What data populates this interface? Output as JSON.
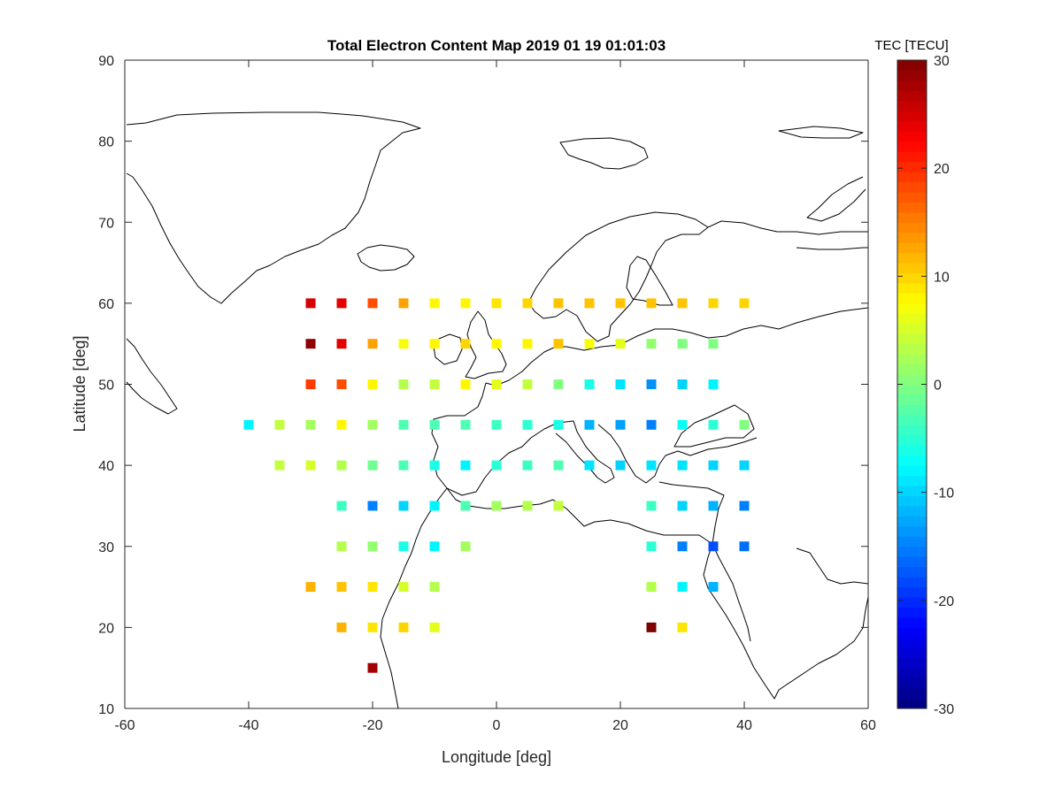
{
  "chart_data": {
    "type": "heatmap",
    "title": "Total Electron Content Map 2019 01 19 01:01:03",
    "xlabel": "Longitude [deg]",
    "ylabel": "Latitude [deg]",
    "xlim": [
      -60,
      60
    ],
    "ylim": [
      10,
      90
    ],
    "xticks": [
      -60,
      -40,
      -20,
      0,
      20,
      40,
      60
    ],
    "yticks": [
      10,
      20,
      30,
      40,
      50,
      60,
      70,
      80,
      90
    ],
    "colorbar": {
      "label": "TEC [TECU]",
      "range": [
        -30,
        30
      ],
      "ticks": [
        -30,
        -20,
        -10,
        0,
        10,
        20,
        30
      ],
      "colormap": "jet"
    },
    "points": [
      {
        "lon": -30,
        "lat": 60,
        "tec": 25
      },
      {
        "lon": -25,
        "lat": 60,
        "tec": 24
      },
      {
        "lon": -20,
        "lat": 60,
        "tec": 18
      },
      {
        "lon": -15,
        "lat": 60,
        "tec": 13
      },
      {
        "lon": -10,
        "lat": 60,
        "tec": 8
      },
      {
        "lon": -5,
        "lat": 60,
        "tec": 8
      },
      {
        "lon": 0,
        "lat": 60,
        "tec": 9
      },
      {
        "lon": 5,
        "lat": 60,
        "tec": 10
      },
      {
        "lon": 10,
        "lat": 60,
        "tec": 11
      },
      {
        "lon": 15,
        "lat": 60,
        "tec": 11
      },
      {
        "lon": 20,
        "lat": 60,
        "tec": 11
      },
      {
        "lon": 25,
        "lat": 60,
        "tec": 11
      },
      {
        "lon": 30,
        "lat": 60,
        "tec": 11
      },
      {
        "lon": 35,
        "lat": 60,
        "tec": 10
      },
      {
        "lon": 40,
        "lat": 60,
        "tec": 10
      },
      {
        "lon": -30,
        "lat": 55,
        "tec": 29
      },
      {
        "lon": -25,
        "lat": 55,
        "tec": 24
      },
      {
        "lon": -20,
        "lat": 55,
        "tec": 13
      },
      {
        "lon": -15,
        "lat": 55,
        "tec": 7
      },
      {
        "lon": -10,
        "lat": 55,
        "tec": 8
      },
      {
        "lon": -5,
        "lat": 55,
        "tec": 10
      },
      {
        "lon": 0,
        "lat": 55,
        "tec": 8
      },
      {
        "lon": 5,
        "lat": 55,
        "tec": 8
      },
      {
        "lon": 10,
        "lat": 55,
        "tec": 11
      },
      {
        "lon": 15,
        "lat": 55,
        "tec": 7
      },
      {
        "lon": 20,
        "lat": 55,
        "tec": 6
      },
      {
        "lon": 25,
        "lat": 55,
        "tec": 1
      },
      {
        "lon": 30,
        "lat": 55,
        "tec": 0
      },
      {
        "lon": 35,
        "lat": 55,
        "tec": 0
      },
      {
        "lon": -30,
        "lat": 50,
        "tec": 19
      },
      {
        "lon": -25,
        "lat": 50,
        "tec": 18
      },
      {
        "lon": -20,
        "lat": 50,
        "tec": 8
      },
      {
        "lon": -15,
        "lat": 50,
        "tec": 3
      },
      {
        "lon": -10,
        "lat": 50,
        "tec": 4
      },
      {
        "lon": -5,
        "lat": 50,
        "tec": 8
      },
      {
        "lon": 0,
        "lat": 50,
        "tec": 6
      },
      {
        "lon": 5,
        "lat": 50,
        "tec": 4
      },
      {
        "lon": 10,
        "lat": 50,
        "tec": 0
      },
      {
        "lon": 15,
        "lat": 50,
        "tec": -6
      },
      {
        "lon": 20,
        "lat": 50,
        "tec": -9
      },
      {
        "lon": 25,
        "lat": 50,
        "tec": -14
      },
      {
        "lon": 30,
        "lat": 50,
        "tec": -10
      },
      {
        "lon": 35,
        "lat": 50,
        "tec": -8
      },
      {
        "lon": -40,
        "lat": 45,
        "tec": -8
      },
      {
        "lon": -35,
        "lat": 45,
        "tec": 4
      },
      {
        "lon": -30,
        "lat": 45,
        "tec": 2
      },
      {
        "lon": -25,
        "lat": 45,
        "tec": 8
      },
      {
        "lon": -20,
        "lat": 45,
        "tec": 2
      },
      {
        "lon": -15,
        "lat": 45,
        "tec": -3
      },
      {
        "lon": -10,
        "lat": 45,
        "tec": -3
      },
      {
        "lon": -5,
        "lat": 45,
        "tec": -3
      },
      {
        "lon": 0,
        "lat": 45,
        "tec": -4
      },
      {
        "lon": 5,
        "lat": 45,
        "tec": -5
      },
      {
        "lon": 10,
        "lat": 45,
        "tec": -6
      },
      {
        "lon": 15,
        "lat": 45,
        "tec": -12
      },
      {
        "lon": 20,
        "lat": 45,
        "tec": -13
      },
      {
        "lon": 25,
        "lat": 45,
        "tec": -15
      },
      {
        "lon": 30,
        "lat": 45,
        "tec": -7
      },
      {
        "lon": 35,
        "lat": 45,
        "tec": -5
      },
      {
        "lon": 40,
        "lat": 45,
        "tec": 0
      },
      {
        "lon": -35,
        "lat": 40,
        "tec": 4
      },
      {
        "lon": -30,
        "lat": 40,
        "tec": 5
      },
      {
        "lon": -25,
        "lat": 40,
        "tec": 3
      },
      {
        "lon": -20,
        "lat": 40,
        "tec": -1
      },
      {
        "lon": -15,
        "lat": 40,
        "tec": -3
      },
      {
        "lon": -10,
        "lat": 40,
        "tec": -6
      },
      {
        "lon": -5,
        "lat": 40,
        "tec": -8
      },
      {
        "lon": 0,
        "lat": 40,
        "tec": -5
      },
      {
        "lon": 5,
        "lat": 40,
        "tec": -4
      },
      {
        "lon": 10,
        "lat": 40,
        "tec": -3
      },
      {
        "lon": 15,
        "lat": 40,
        "tec": -9
      },
      {
        "lon": 20,
        "lat": 40,
        "tec": -10
      },
      {
        "lon": 25,
        "lat": 40,
        "tec": -9
      },
      {
        "lon": 30,
        "lat": 40,
        "tec": -9
      },
      {
        "lon": 35,
        "lat": 40,
        "tec": -10
      },
      {
        "lon": 40,
        "lat": 40,
        "tec": -10
      },
      {
        "lon": -25,
        "lat": 35,
        "tec": -4
      },
      {
        "lon": -20,
        "lat": 35,
        "tec": -15
      },
      {
        "lon": -15,
        "lat": 35,
        "tec": -10
      },
      {
        "lon": -10,
        "lat": 35,
        "tec": -8
      },
      {
        "lon": -5,
        "lat": 35,
        "tec": -3
      },
      {
        "lon": 0,
        "lat": 35,
        "tec": 2
      },
      {
        "lon": 5,
        "lat": 35,
        "tec": 3
      },
      {
        "lon": 10,
        "lat": 35,
        "tec": 4
      },
      {
        "lon": 25,
        "lat": 35,
        "tec": -4
      },
      {
        "lon": 30,
        "lat": 35,
        "tec": -10
      },
      {
        "lon": 35,
        "lat": 35,
        "tec": -12
      },
      {
        "lon": 40,
        "lat": 35,
        "tec": -15
      },
      {
        "lon": -25,
        "lat": 30,
        "tec": 3
      },
      {
        "lon": -20,
        "lat": 30,
        "tec": 1
      },
      {
        "lon": -15,
        "lat": 30,
        "tec": -6
      },
      {
        "lon": -10,
        "lat": 30,
        "tec": -8
      },
      {
        "lon": -5,
        "lat": 30,
        "tec": 2
      },
      {
        "lon": 25,
        "lat": 30,
        "tec": -5
      },
      {
        "lon": 30,
        "lat": 30,
        "tec": -15
      },
      {
        "lon": 35,
        "lat": 30,
        "tec": -18
      },
      {
        "lon": 40,
        "lat": 30,
        "tec": -16
      },
      {
        "lon": -30,
        "lat": 25,
        "tec": 12
      },
      {
        "lon": -25,
        "lat": 25,
        "tec": 11
      },
      {
        "lon": -20,
        "lat": 25,
        "tec": 9
      },
      {
        "lon": -15,
        "lat": 25,
        "tec": 5
      },
      {
        "lon": -10,
        "lat": 25,
        "tec": 3
      },
      {
        "lon": 25,
        "lat": 25,
        "tec": 3
      },
      {
        "lon": 30,
        "lat": 25,
        "tec": -8
      },
      {
        "lon": 35,
        "lat": 25,
        "tec": -12
      },
      {
        "lon": -25,
        "lat": 20,
        "tec": 12
      },
      {
        "lon": -20,
        "lat": 20,
        "tec": 9
      },
      {
        "lon": -15,
        "lat": 20,
        "tec": 10
      },
      {
        "lon": -10,
        "lat": 20,
        "tec": 6
      },
      {
        "lon": 25,
        "lat": 20,
        "tec": 30
      },
      {
        "lon": 30,
        "lat": 20,
        "tec": 9
      },
      {
        "lon": -20,
        "lat": 15,
        "tec": 28
      }
    ]
  }
}
